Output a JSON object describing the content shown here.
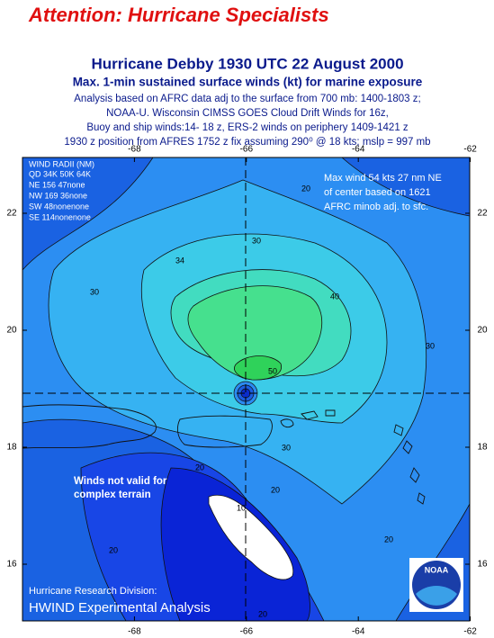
{
  "header": {
    "attention": "Attention:  Hurricane Specialists",
    "title": "Hurricane Debby 1930 UTC 22 August 2000",
    "subtitle": "Max. 1-min sustained surface winds (kt) for marine exposure",
    "notes": [
      "Analysis based on AFRC data adj to the surface from 700 mb:  1400-1803 z;",
      "NOAA-U. Wisconsin CIMSS GOES Cloud Drift Winds for 16z,",
      "Buoy and ship winds:14- 18 z,  ERS-2 winds on periphery 1409-1421 z",
      "1930 z position from AFRES  1752 z  fix  assuming 290⁰ @  18 kts;  mslp = 997 mb"
    ]
  },
  "map": {
    "lon_ticks": [
      -68,
      -66,
      -64,
      -62
    ],
    "lat_ticks": [
      22,
      20,
      18,
      16
    ],
    "wind_radii": {
      "title": "WIND RADII (NM)",
      "rows": [
        "QD  34K  50K  64K",
        "NE  156   47none",
        "NW 169   36none",
        "SW   48nonenone",
        "SE  114nonenone"
      ]
    },
    "max_wind_note": [
      "Max wind 54 kts 27 nm NE",
      "of center based on 1621",
      "AFRC minob adj. to sfc."
    ],
    "terrain_note": [
      "Winds not valid for",
      "complex terrain"
    ],
    "contour_labels": [
      "20",
      "30",
      "34",
      "30",
      "40",
      "30",
      "50",
      "30",
      "20",
      "20",
      "10",
      "20",
      "20",
      "20"
    ]
  },
  "footer": {
    "division": "Hurricane Research Division:",
    "product": "HWIND Experimental Analysis"
  },
  "logo": "NOAA"
}
